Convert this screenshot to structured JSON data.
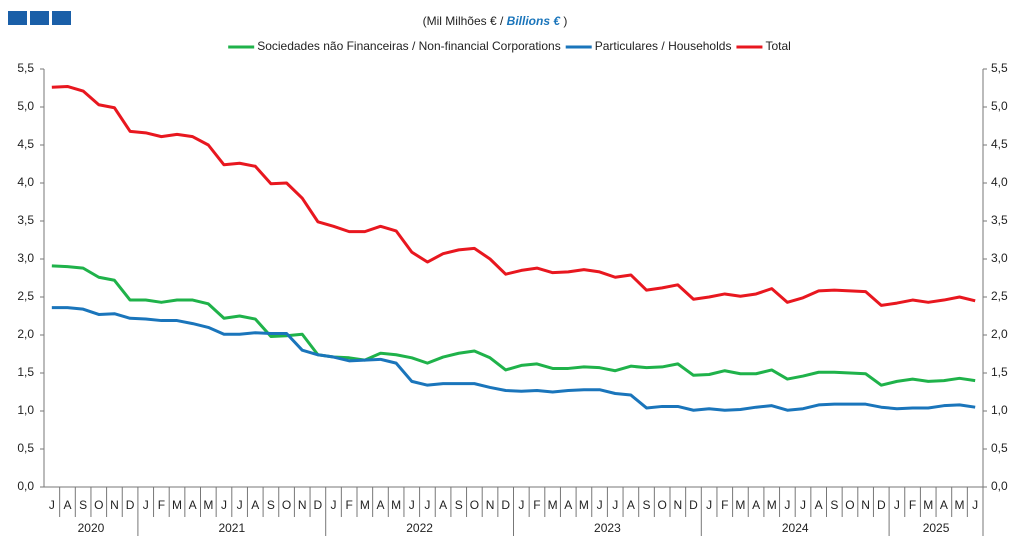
{
  "chart_data": {
    "type": "line",
    "title_parts": [
      "(Mil Milhões € / ",
      "Billions €",
      " )"
    ],
    "categories": [
      "J",
      "A",
      "S",
      "O",
      "N",
      "D",
      "J",
      "F",
      "M",
      "A",
      "M",
      "J",
      "J",
      "A",
      "S",
      "O",
      "N",
      "D",
      "J",
      "F",
      "M",
      "A",
      "M",
      "J",
      "J",
      "A",
      "S",
      "O",
      "N",
      "D",
      "J",
      "F",
      "M",
      "A",
      "M",
      "J",
      "J",
      "A",
      "S",
      "O",
      "N",
      "D",
      "J",
      "F",
      "M",
      "A",
      "M",
      "J",
      "J",
      "A",
      "S",
      "O",
      "N",
      "D",
      "J",
      "F",
      "M",
      "A",
      "M",
      "J"
    ],
    "year_labels": [
      "2020",
      "2021",
      "2022",
      "2023",
      "2024",
      "2025"
    ],
    "series": [
      {
        "name": "Sociedades não Financeiras / Non-financial Corporations",
        "color": "#1fb24a",
        "values": [
          2.91,
          2.9,
          2.88,
          2.76,
          2.72,
          2.46,
          2.46,
          2.43,
          2.46,
          2.46,
          2.41,
          2.22,
          2.25,
          2.21,
          1.98,
          1.99,
          2.01,
          1.74,
          1.71,
          1.7,
          1.67,
          1.76,
          1.74,
          1.7,
          1.63,
          1.71,
          1.76,
          1.79,
          1.7,
          1.54,
          1.6,
          1.62,
          1.56,
          1.56,
          1.58,
          1.57,
          1.53,
          1.59,
          1.57,
          1.58,
          1.62,
          1.47,
          1.48,
          1.53,
          1.49,
          1.49,
          1.54,
          1.42,
          1.46,
          1.51,
          1.51,
          1.5,
          1.49,
          1.34,
          1.39,
          1.42,
          1.39,
          1.4,
          1.43,
          1.4
        ]
      },
      {
        "name": "Particulares / Households",
        "color": "#1a75bb",
        "values": [
          2.36,
          2.36,
          2.34,
          2.27,
          2.28,
          2.22,
          2.21,
          2.19,
          2.19,
          2.15,
          2.1,
          2.01,
          2.01,
          2.03,
          2.02,
          2.02,
          1.8,
          1.74,
          1.71,
          1.66,
          1.67,
          1.68,
          1.63,
          1.39,
          1.34,
          1.36,
          1.36,
          1.36,
          1.31,
          1.27,
          1.26,
          1.27,
          1.25,
          1.27,
          1.28,
          1.28,
          1.23,
          1.21,
          1.04,
          1.06,
          1.06,
          1.01,
          1.03,
          1.01,
          1.02,
          1.05,
          1.07,
          1.01,
          1.03,
          1.08,
          1.09,
          1.09,
          1.09,
          1.05,
          1.03,
          1.04,
          1.04,
          1.07,
          1.08,
          1.05
        ]
      },
      {
        "name": "Total",
        "color": "#e8171f",
        "values": [
          5.26,
          5.27,
          5.21,
          5.03,
          4.99,
          4.68,
          4.66,
          4.61,
          4.64,
          4.61,
          4.5,
          4.24,
          4.26,
          4.22,
          3.99,
          4.0,
          3.8,
          3.49,
          3.43,
          3.36,
          3.36,
          3.43,
          3.37,
          3.09,
          2.96,
          3.07,
          3.12,
          3.14,
          3.0,
          2.8,
          2.85,
          2.88,
          2.82,
          2.83,
          2.86,
          2.83,
          2.76,
          2.79,
          2.59,
          2.62,
          2.66,
          2.47,
          2.5,
          2.54,
          2.51,
          2.54,
          2.61,
          2.43,
          2.49,
          2.58,
          2.59,
          2.58,
          2.57,
          2.39,
          2.42,
          2.46,
          2.43,
          2.46,
          2.5,
          2.45
        ]
      }
    ],
    "ylim": [
      0,
      5.5
    ],
    "yticks": [
      {
        "value": 0,
        "label": "0,0"
      },
      {
        "value": 0.5,
        "label": "0,5"
      },
      {
        "value": 1,
        "label": "1,0"
      },
      {
        "value": 1.5,
        "label": "1,5"
      },
      {
        "value": 2,
        "label": "2,0"
      },
      {
        "value": 2.5,
        "label": "2,5"
      },
      {
        "value": 3,
        "label": "3,0"
      },
      {
        "value": 3.5,
        "label": "3,5"
      },
      {
        "value": 4,
        "label": "4,0"
      },
      {
        "value": 4.5,
        "label": "4,5"
      },
      {
        "value": 5,
        "label": "5,0"
      },
      {
        "value": 5.5,
        "label": "5,5"
      }
    ],
    "grid": false
  }
}
